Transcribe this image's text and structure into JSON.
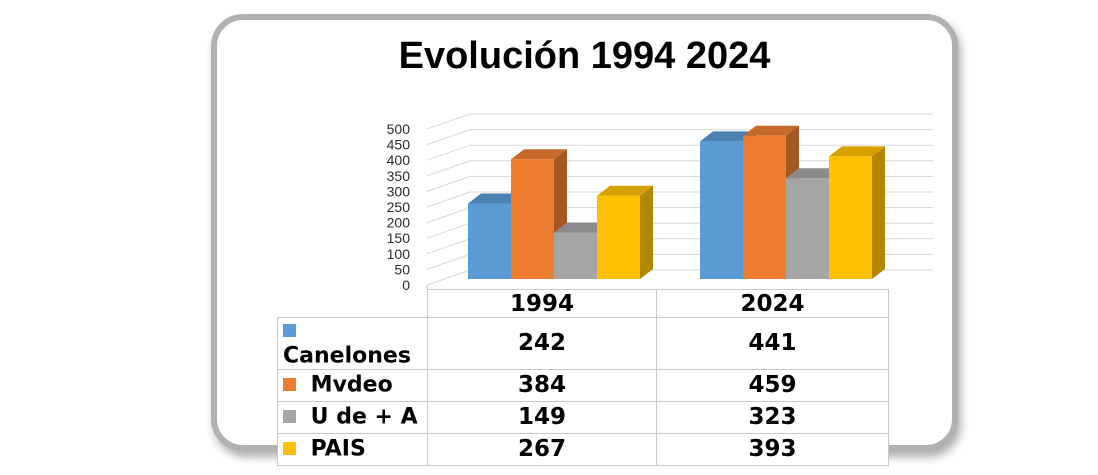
{
  "chart_data": {
    "type": "bar",
    "style": "3d-clustered-column",
    "title": "Evolución 1994 2024",
    "categories": [
      "1994",
      "2024"
    ],
    "series": [
      {
        "name": "Canelones",
        "color": "#5B9BD5",
        "values": [
          242,
          441
        ]
      },
      {
        "name": "Mvdeo",
        "color": "#ED7D31",
        "values": [
          384,
          459
        ]
      },
      {
        "name": "U de + A",
        "color": "#A5A5A5",
        "values": [
          149,
          323
        ]
      },
      {
        "name": "PAIS",
        "color": "#FFC000",
        "values": [
          267,
          393
        ]
      }
    ],
    "xlabel": "",
    "ylabel": "",
    "ylim": [
      0,
      500
    ],
    "yticks": [
      0,
      50,
      100,
      150,
      200,
      250,
      300,
      350,
      400,
      450,
      500
    ],
    "grid": true,
    "legend_position": "data-table-left",
    "data_table_shown": true,
    "gridline_color": "#d8d8d8",
    "tick_label_color": "#2b2b2b"
  }
}
